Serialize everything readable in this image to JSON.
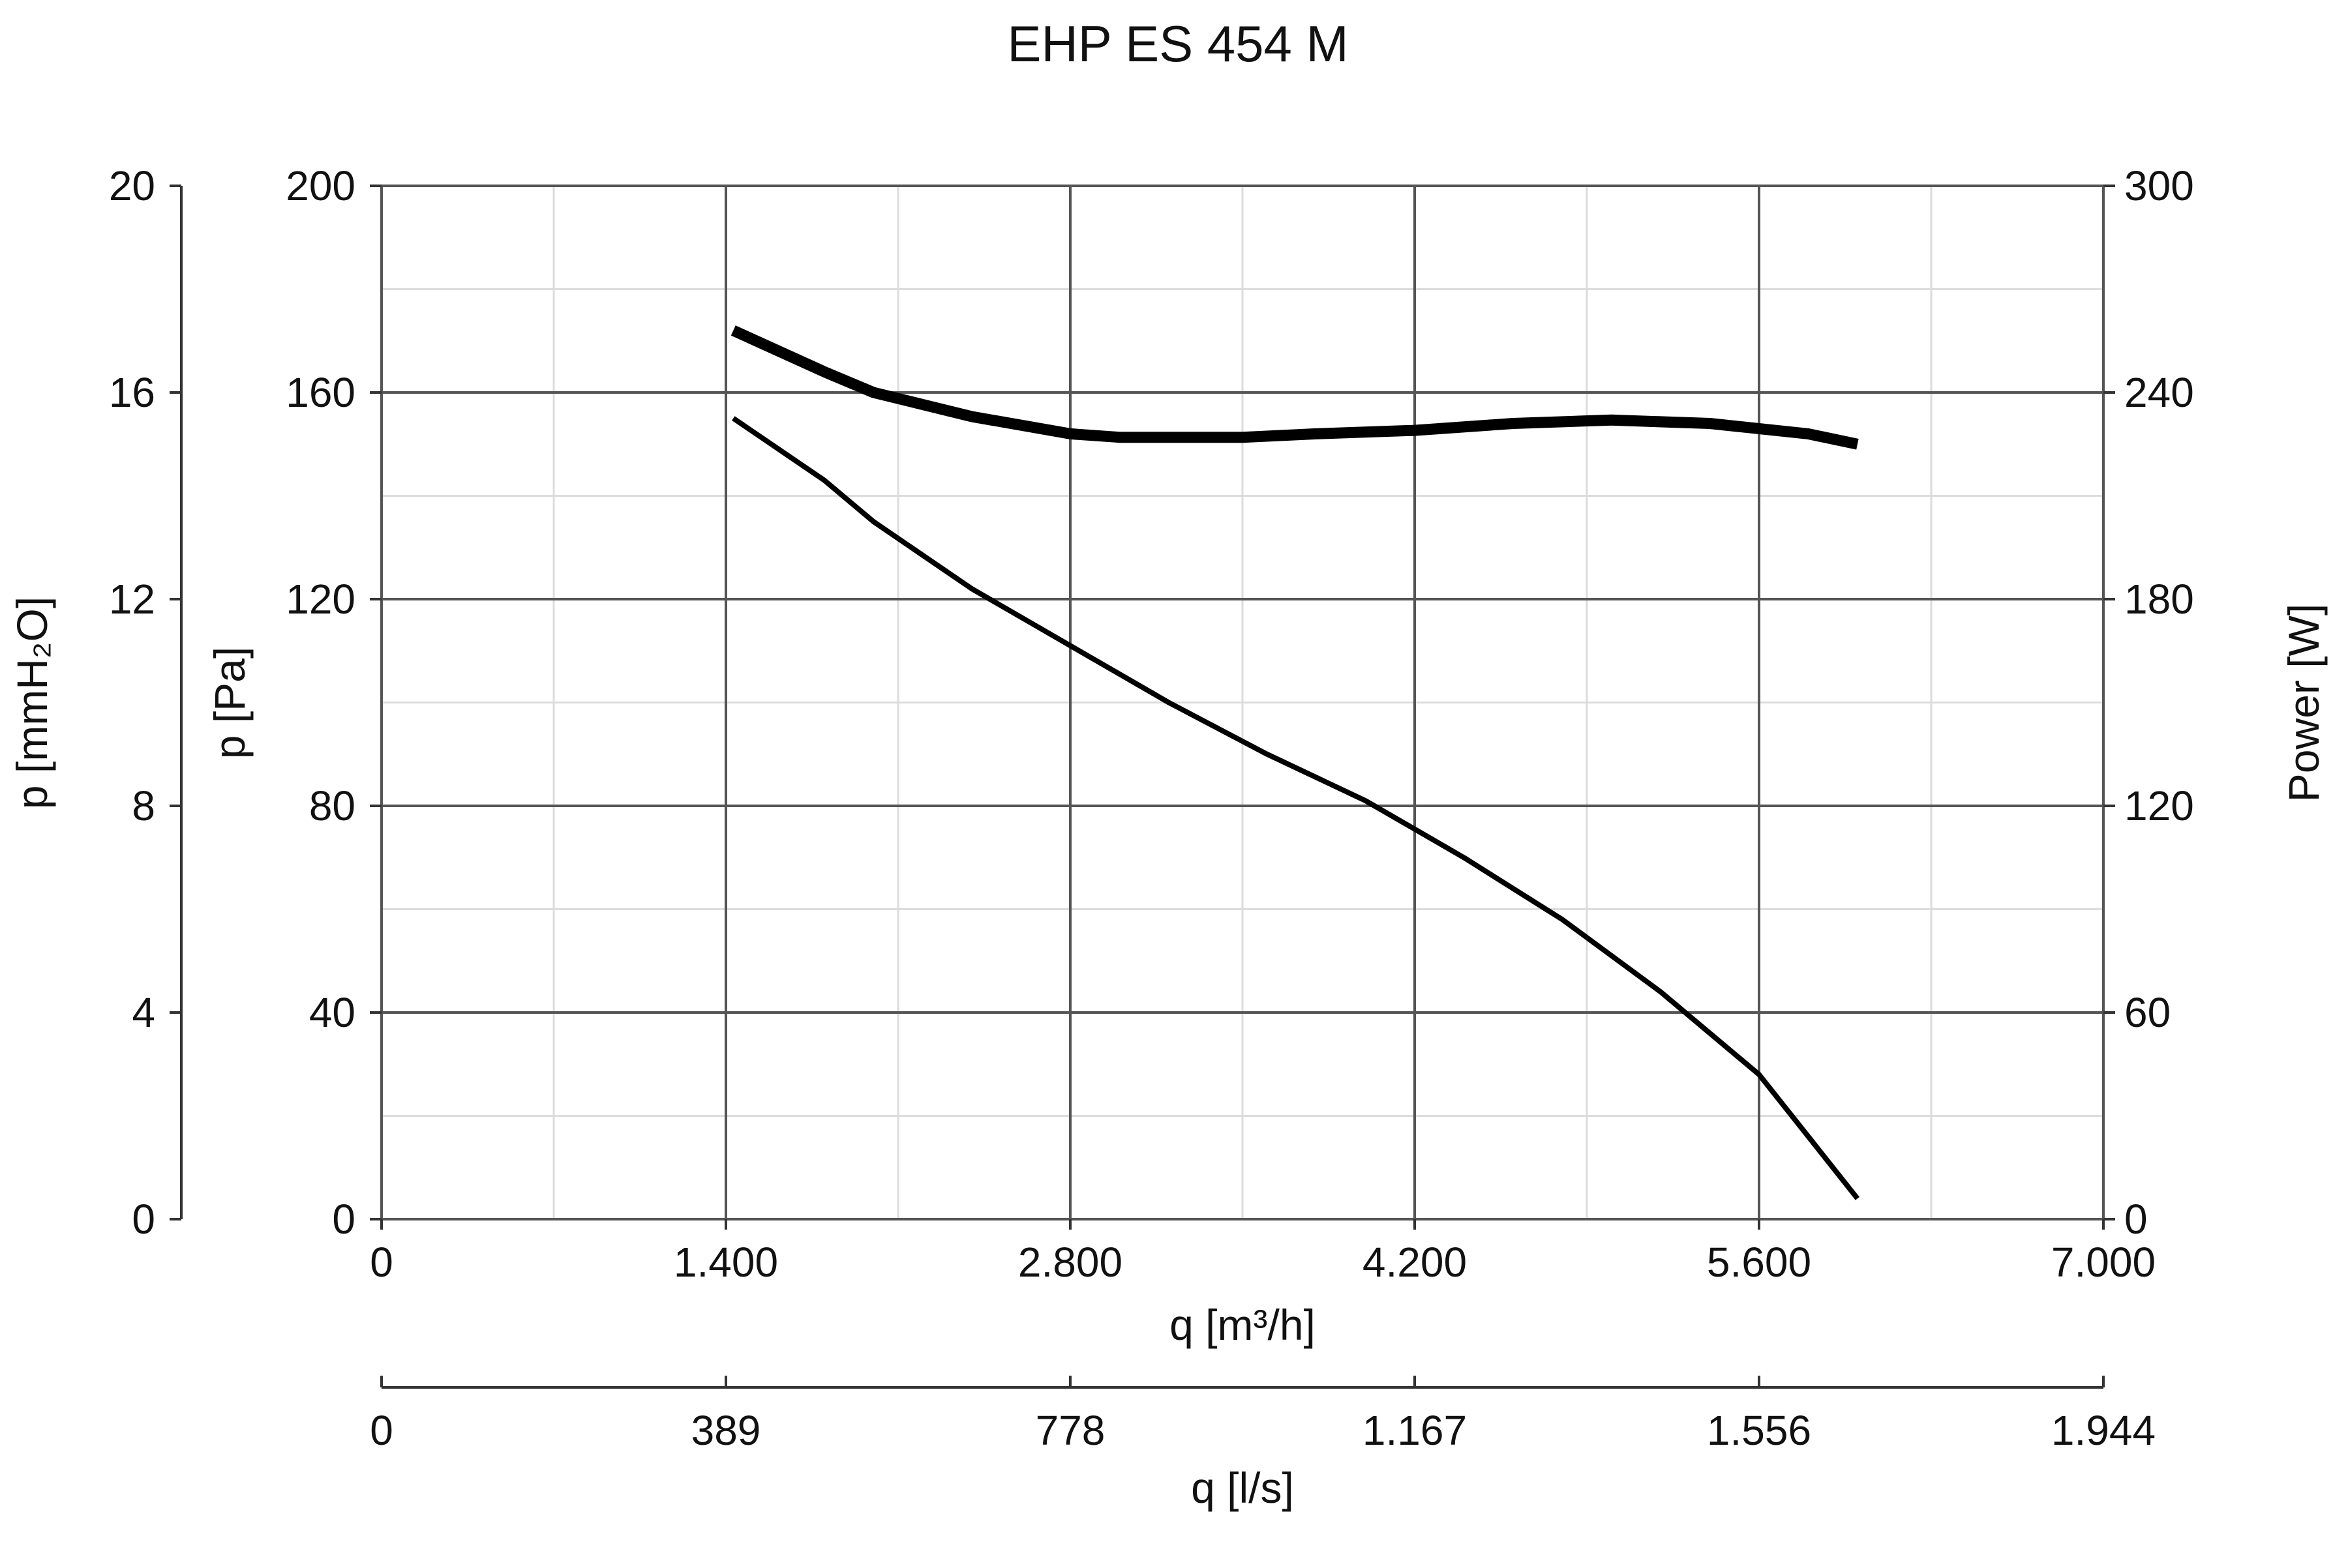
{
  "chart_data": {
    "type": "line",
    "title": "EHP ES 454 M",
    "x_axis": {
      "label": "q [m³/h]",
      "range": [
        0,
        7000
      ],
      "ticks": [
        0,
        1400,
        2800,
        4200,
        5600,
        7000
      ],
      "tick_labels": [
        "0",
        "1.400",
        "2.800",
        "4.200",
        "5.600",
        "7.000"
      ],
      "minor_grid": [
        700,
        2100,
        3500,
        4900,
        6300
      ]
    },
    "x2_axis": {
      "label": "q [l/s]",
      "tick_labels": [
        "0",
        "389",
        "778",
        "1.167",
        "1.556",
        "1.944"
      ]
    },
    "y_axis": {
      "label": "p [Pa]",
      "range": [
        0,
        200
      ],
      "ticks": [
        0,
        40,
        80,
        120,
        160,
        200
      ],
      "tick_labels": [
        "0",
        "40",
        "80",
        "120",
        "160",
        "200"
      ],
      "minor_grid": [
        20,
        60,
        100,
        140,
        180
      ]
    },
    "y2_axis": {
      "label": "p [mmH₂O]",
      "tick_labels": [
        "0",
        "4",
        "8",
        "12",
        "16",
        "20"
      ]
    },
    "y3_axis": {
      "label": "Power [W]",
      "range": [
        0,
        300
      ],
      "tick_labels": [
        "0",
        "60",
        "120",
        "180",
        "240",
        "300"
      ]
    },
    "grid": true,
    "series": [
      {
        "axis": "pressure",
        "color": "#000000",
        "x": [
          1430,
          1800,
          2000,
          2400,
          2800,
          3200,
          3600,
          4000,
          4400,
          4800,
          5200,
          5600,
          6000
        ],
        "y": [
          155,
          143,
          135,
          122,
          111,
          100,
          90,
          81,
          70,
          58,
          44,
          28,
          4
        ]
      },
      {
        "axis": "power",
        "color": "#000000",
        "x": [
          1430,
          1800,
          2000,
          2400,
          2800,
          3000,
          3200,
          3500,
          3800,
          4200,
          4600,
          5000,
          5400,
          5800,
          6000
        ],
        "y": [
          258,
          246,
          240,
          233,
          228,
          227,
          227,
          227,
          228,
          229,
          231,
          232,
          231,
          228,
          225
        ]
      }
    ]
  }
}
